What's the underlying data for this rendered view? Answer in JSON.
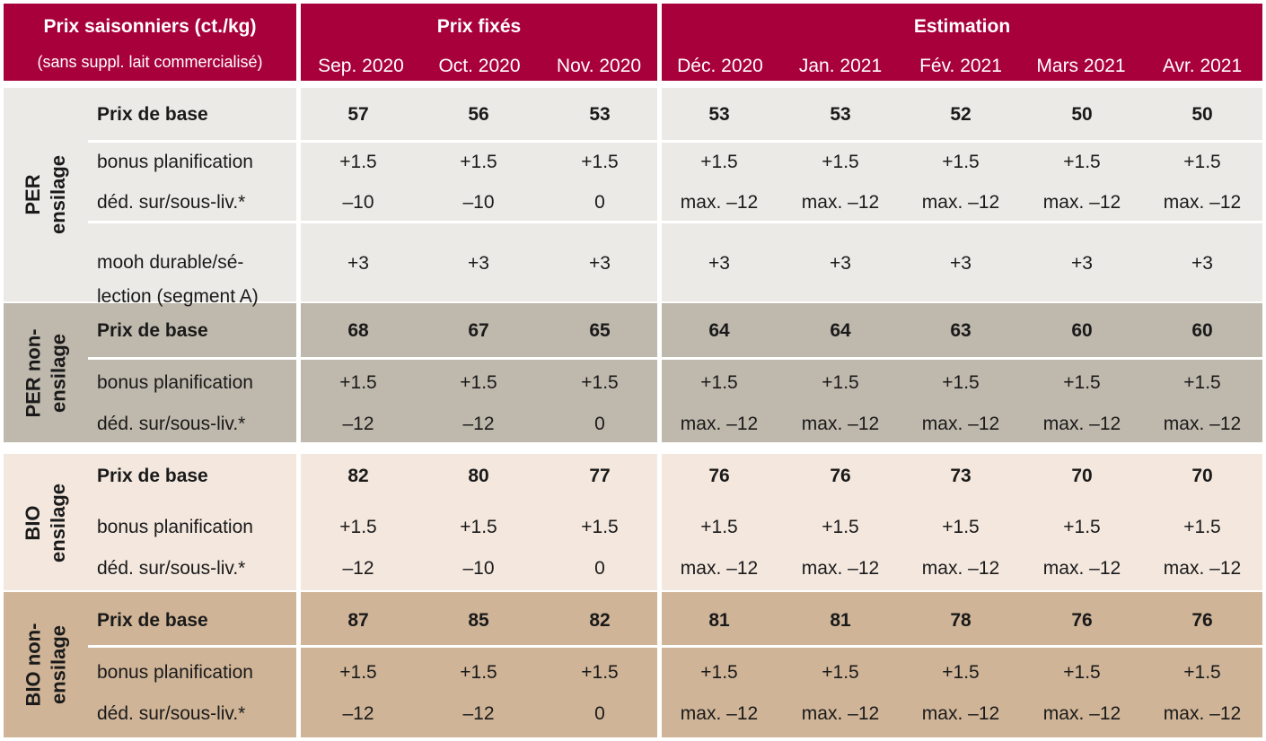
{
  "header": {
    "title": "Prix saisonniers (ct./kg)",
    "subtitle": "(sans suppl. lait commercialisé)",
    "group_fixed": "Prix fixés",
    "group_estimate": "Estimation",
    "months": [
      "Sep. 2020",
      "Oct. 2020",
      "Nov. 2020",
      "Déc. 2020",
      "Jan. 2021",
      "Fév. 2021",
      "Mars 2021",
      "Avr. 2021"
    ]
  },
  "sections": [
    {
      "label_line1": "PER",
      "label_line2": "ensilage",
      "rows": [
        {
          "label": "Prix de base",
          "values": [
            "57",
            "56",
            "53",
            "53",
            "53",
            "52",
            "50",
            "50"
          ]
        },
        {
          "label": "bonus planification",
          "values": [
            "+1.5",
            "+1.5",
            "+1.5",
            "+1.5",
            "+1.5",
            "+1.5",
            "+1.5",
            "+1.5"
          ]
        },
        {
          "label": "déd. sur/sous-liv.*",
          "values": [
            "–10",
            "–10",
            "0",
            "max. –12",
            "max. –12",
            "max. –12",
            "max. –12",
            "max. –12"
          ]
        },
        {
          "label_line1": "mooh durable/sé-",
          "label_line2": "lection (segment A)",
          "values": [
            "+3",
            "+3",
            "+3",
            "+3",
            "+3",
            "+3",
            "+3",
            "+3"
          ]
        }
      ]
    },
    {
      "label_line1": "PER non-",
      "label_line2": "ensilage",
      "rows": [
        {
          "label": "Prix de base",
          "values": [
            "68",
            "67",
            "65",
            "64",
            "64",
            "63",
            "60",
            "60"
          ]
        },
        {
          "label": "bonus planification",
          "values": [
            "+1.5",
            "+1.5",
            "+1.5",
            "+1.5",
            "+1.5",
            "+1.5",
            "+1.5",
            "+1.5"
          ]
        },
        {
          "label": "déd. sur/sous-liv.*",
          "values": [
            "–12",
            "–12",
            "0",
            "max. –12",
            "max. –12",
            "max. –12",
            "max. –12",
            "max. –12"
          ]
        }
      ]
    },
    {
      "label_line1": "BIO",
      "label_line2": "ensilage",
      "rows": [
        {
          "label": "Prix de base",
          "values": [
            "82",
            "80",
            "77",
            "76",
            "76",
            "73",
            "70",
            "70"
          ]
        },
        {
          "label": "bonus planification",
          "values": [
            "+1.5",
            "+1.5",
            "+1.5",
            "+1.5",
            "+1.5",
            "+1.5",
            "+1.5",
            "+1.5"
          ]
        },
        {
          "label": "déd. sur/sous-liv.*",
          "values": [
            "–12",
            "–10",
            "0",
            "max. –12",
            "max. –12",
            "max. –12",
            "max. –12",
            "max. –12"
          ]
        }
      ]
    },
    {
      "label_line1": "BIO non-",
      "label_line2": "ensilage",
      "rows": [
        {
          "label": "Prix de base",
          "values": [
            "87",
            "85",
            "82",
            "81",
            "81",
            "78",
            "76",
            "76"
          ]
        },
        {
          "label": "bonus planification",
          "values": [
            "+1.5",
            "+1.5",
            "+1.5",
            "+1.5",
            "+1.5",
            "+1.5",
            "+1.5",
            "+1.5"
          ]
        },
        {
          "label": "déd. sur/sous-liv.*",
          "values": [
            "–12",
            "–12",
            "0",
            "max. –12",
            "max. –12",
            "max. –12",
            "max. –12",
            "max. –12"
          ]
        }
      ]
    }
  ]
}
